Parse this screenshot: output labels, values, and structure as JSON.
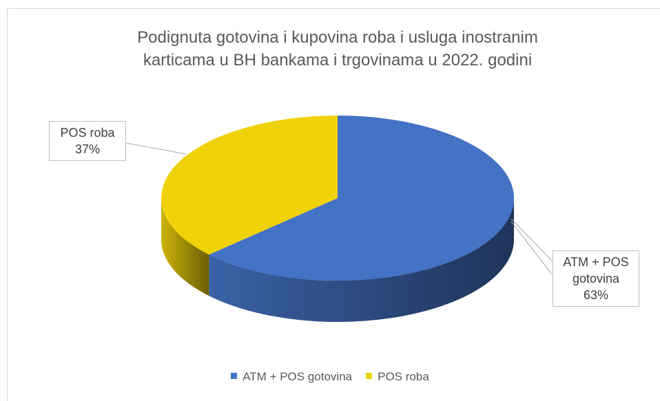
{
  "chart_data": {
    "type": "pie3d",
    "title": "Podignuta gotovina i kupovina roba i usluga inostranim karticama u BH bankama i trgovinama u 2022. godini",
    "categories": [
      "ATM + POS gotovina",
      "POS roba"
    ],
    "values": [
      63,
      37
    ],
    "value_labels": [
      "63%",
      "37%"
    ],
    "colors": [
      "#4472c4",
      "#f0d20a"
    ],
    "legend": "bottom"
  }
}
